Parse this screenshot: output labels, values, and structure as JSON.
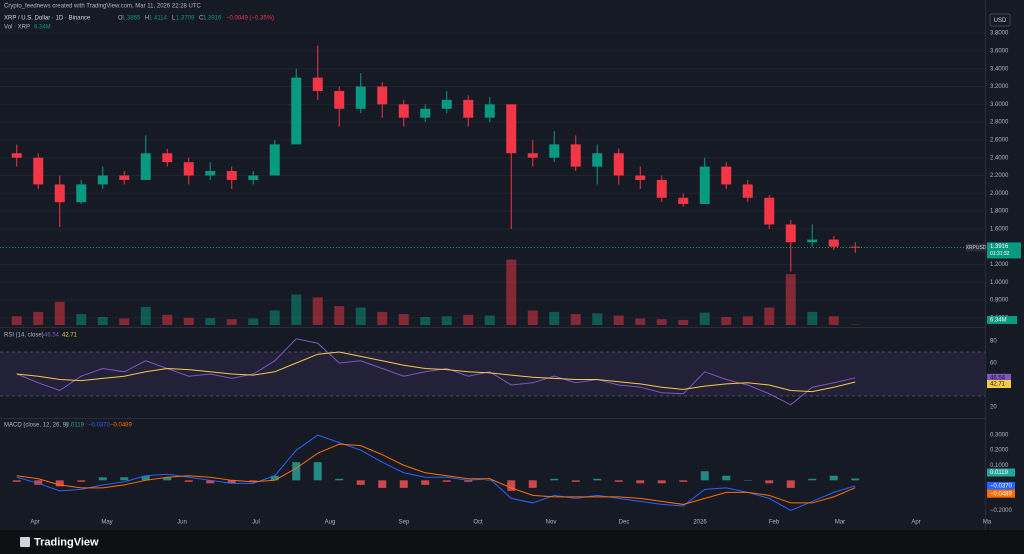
{
  "header": {
    "credit": "Crypto_feednews created with TradingView.com, Mar 11, 2026 22:28 UTC",
    "symbol": "XRP / U.S. Dollar · 1D · Binance",
    "ohlc": [
      {
        "key": "O",
        "value": 1.3865
      },
      {
        "key": "H",
        "value": 1.4114
      },
      {
        "key": "L",
        "value": 1.3709
      },
      {
        "key": "C",
        "value": 1.3916
      }
    ],
    "change": {
      "value": -0.0049,
      "label": "−0.0049 (−0.35%)"
    },
    "volume_title": "Vol · XRP",
    "currency": "USD",
    "ticker": "XRPUSD",
    "countdown": "01:31:32",
    "x_axis_labels": [
      "Apr",
      "May",
      "Jun",
      "Jul",
      "Aug",
      "Sep",
      "Oct",
      "Nov",
      "Dec",
      "2026",
      "Feb",
      "Mar",
      "Apr",
      "Ma"
    ],
    "brand": "TradingView"
  },
  "chart_data": [
    {
      "type": "candlestick",
      "up_color": "#089981",
      "down_color": "#f23645",
      "ylim": [
        0.52,
        4.06
      ],
      "yticks": [
        {
          "value": 0.6,
          "label": "0.6000"
        },
        {
          "value": 0.8,
          "label": "0.8000"
        },
        {
          "value": 1.0,
          "label": "1.0000"
        },
        {
          "value": 1.2,
          "label": "1.2000"
        },
        {
          "value": 1.6,
          "label": "1.6000"
        },
        {
          "value": 1.8,
          "label": "1.8000"
        },
        {
          "value": 2.0,
          "label": "2.0000"
        },
        {
          "value": 2.2,
          "label": "2.2000"
        },
        {
          "value": 2.4,
          "label": "2.4000"
        },
        {
          "value": 2.6,
          "label": "2.6000"
        },
        {
          "value": 2.8,
          "label": "2.8000"
        },
        {
          "value": 3.0,
          "label": "3.0000"
        },
        {
          "value": 3.2,
          "label": "3.2000"
        },
        {
          "value": 3.4,
          "label": "3.4000"
        },
        {
          "value": 3.6,
          "label": "3.6000"
        },
        {
          "value": 3.8,
          "label": "3.8000"
        }
      ],
      "grid": true,
      "open": [
        2.45,
        2.4,
        2.1,
        1.9,
        2.1,
        2.2,
        2.15,
        2.45,
        2.35,
        2.2,
        2.25,
        2.15,
        2.2,
        2.55,
        3.3,
        3.15,
        2.95,
        3.2,
        3.0,
        2.85,
        2.95,
        3.05,
        2.85,
        3.0,
        2.45,
        2.4,
        2.55,
        2.3,
        2.45,
        2.2,
        2.15,
        1.95,
        1.88,
        2.3,
        2.1,
        1.95,
        1.65,
        1.45,
        1.48,
        1.4
      ],
      "high": [
        2.55,
        2.45,
        2.2,
        2.15,
        2.3,
        2.25,
        2.65,
        2.5,
        2.4,
        2.35,
        2.3,
        2.25,
        2.6,
        3.4,
        3.66,
        3.2,
        3.35,
        3.25,
        3.05,
        3.0,
        3.15,
        3.1,
        3.08,
        3.0,
        2.6,
        2.7,
        2.65,
        2.55,
        2.5,
        2.3,
        2.2,
        2.0,
        2.4,
        2.35,
        2.15,
        1.98,
        1.7,
        1.65,
        1.52,
        1.45
      ],
      "low": [
        2.3,
        2.05,
        1.62,
        1.88,
        2.05,
        2.1,
        2.15,
        2.3,
        2.1,
        2.15,
        2.05,
        2.1,
        2.2,
        2.55,
        3.05,
        2.75,
        2.9,
        2.85,
        2.75,
        2.8,
        2.9,
        2.75,
        2.8,
        1.6,
        2.3,
        2.35,
        2.25,
        2.1,
        2.1,
        2.05,
        1.9,
        1.85,
        1.88,
        2.05,
        1.9,
        1.6,
        1.12,
        1.4,
        1.36,
        1.33
      ],
      "close": [
        2.4,
        2.1,
        1.9,
        2.1,
        2.2,
        2.15,
        2.45,
        2.35,
        2.2,
        2.25,
        2.15,
        2.2,
        2.55,
        3.3,
        3.15,
        2.95,
        3.2,
        3.0,
        2.85,
        2.95,
        3.05,
        2.85,
        3.0,
        2.45,
        2.4,
        2.55,
        2.3,
        2.45,
        2.2,
        2.15,
        1.95,
        1.88,
        2.3,
        2.1,
        1.95,
        1.65,
        1.45,
        1.48,
        1.4,
        1.3916
      ],
      "volume": {
        "ylim": [
          0,
          1100000000
        ],
        "values": [
          120000000,
          180000000,
          320000000,
          150000000,
          110000000,
          90000000,
          250000000,
          140000000,
          100000000,
          95000000,
          80000000,
          90000000,
          200000000,
          420000000,
          380000000,
          260000000,
          240000000,
          180000000,
          150000000,
          110000000,
          120000000,
          140000000,
          130000000,
          900000000,
          200000000,
          180000000,
          150000000,
          160000000,
          130000000,
          90000000,
          80000000,
          70000000,
          170000000,
          110000000,
          120000000,
          240000000,
          700000000,
          180000000,
          120000000,
          6340000
        ],
        "value_labels": [
          null,
          null,
          null,
          null,
          null,
          null,
          null,
          null,
          null,
          null,
          null,
          null,
          null,
          null,
          null,
          null,
          null,
          null,
          null,
          null,
          null,
          null,
          null,
          null,
          null,
          null,
          null,
          null,
          null,
          null,
          null,
          null,
          null,
          null,
          null,
          null,
          null,
          null,
          null,
          "6.34M"
        ]
      }
    },
    {
      "type": "line",
      "title": "RSI (14, close)",
      "ylim": [
        10,
        90
      ],
      "yticks": [
        20,
        60,
        80
      ],
      "band": [
        30,
        70
      ],
      "series": [
        {
          "name": "RSI",
          "color": "#7e57c2",
          "values": [
            50,
            42,
            35,
            48,
            55,
            52,
            62,
            55,
            48,
            50,
            46,
            50,
            62,
            82,
            78,
            60,
            62,
            55,
            48,
            52,
            55,
            48,
            52,
            40,
            42,
            48,
            42,
            45,
            40,
            38,
            33,
            32,
            52,
            45,
            40,
            32,
            22,
            38,
            42,
            46.54
          ]
        },
        {
          "name": "RSI MA",
          "color": "#f7c948",
          "values": [
            50,
            48,
            45,
            44,
            46,
            48,
            52,
            55,
            54,
            52,
            50,
            49,
            52,
            60,
            68,
            70,
            66,
            62,
            58,
            55,
            54,
            52,
            51,
            49,
            47,
            46,
            45,
            45,
            43,
            41,
            38,
            36,
            39,
            41,
            42,
            40,
            35,
            34,
            38,
            42.71
          ]
        }
      ]
    },
    {
      "type": "macd",
      "title": "MACD (close, 12, 26, 9)",
      "ylim": [
        -0.25,
        0.4
      ],
      "yticks": [
        {
          "value": -0.2,
          "label": "−0.2000"
        },
        {
          "value": 0.1,
          "label": "0.1000"
        },
        {
          "value": 0.2,
          "label": "0.2000"
        },
        {
          "value": 0.3,
          "label": "0.3000"
        }
      ],
      "series": [
        {
          "name": "Histogram",
          "color": "#26a69a",
          "down_color": "#ff5252",
          "values": [
            -0.01,
            -0.03,
            -0.04,
            -0.01,
            0.02,
            0.02,
            0.03,
            0.02,
            -0.01,
            -0.02,
            -0.02,
            -0.01,
            0.03,
            0.12,
            0.12,
            0.01,
            -0.03,
            -0.05,
            -0.05,
            -0.03,
            -0.01,
            -0.01,
            0.0,
            -0.07,
            -0.05,
            0.01,
            -0.01,
            0.01,
            -0.01,
            -0.02,
            -0.02,
            -0.01,
            0.06,
            0.03,
            0.0,
            -0.02,
            -0.05,
            0.01,
            0.03,
            0.0119
          ]
        },
        {
          "name": "MACD",
          "color": "#2962ff",
          "values": [
            0.02,
            -0.02,
            -0.07,
            -0.06,
            -0.03,
            -0.01,
            0.03,
            0.04,
            0.02,
            0.0,
            -0.02,
            -0.02,
            0.03,
            0.2,
            0.3,
            0.25,
            0.2,
            0.12,
            0.05,
            0.02,
            0.02,
            0.0,
            0.01,
            -0.12,
            -0.15,
            -0.1,
            -0.12,
            -0.1,
            -0.12,
            -0.14,
            -0.16,
            -0.17,
            -0.06,
            -0.05,
            -0.08,
            -0.12,
            -0.2,
            -0.14,
            -0.08,
            -0.037
          ],
          "value_labels": [
            null,
            null,
            null,
            null,
            null,
            null,
            null,
            null,
            null,
            null,
            null,
            null,
            null,
            null,
            null,
            null,
            null,
            null,
            null,
            null,
            null,
            null,
            null,
            null,
            null,
            null,
            null,
            null,
            null,
            null,
            null,
            null,
            null,
            null,
            null,
            null,
            null,
            null,
            null,
            "−0.0370"
          ]
        },
        {
          "name": "Signal",
          "color": "#ff6d00",
          "values": [
            0.03,
            0.01,
            -0.03,
            -0.05,
            -0.05,
            -0.03,
            0.0,
            0.02,
            0.03,
            0.02,
            0.0,
            -0.01,
            0.0,
            0.08,
            0.18,
            0.24,
            0.23,
            0.17,
            0.1,
            0.05,
            0.03,
            0.01,
            0.01,
            -0.05,
            -0.1,
            -0.11,
            -0.11,
            -0.11,
            -0.11,
            -0.12,
            -0.14,
            -0.16,
            -0.12,
            -0.08,
            -0.08,
            -0.1,
            -0.15,
            -0.15,
            -0.11,
            -0.0489
          ],
          "value_labels": [
            null,
            null,
            null,
            null,
            null,
            null,
            null,
            null,
            null,
            null,
            null,
            null,
            null,
            null,
            null,
            null,
            null,
            null,
            null,
            null,
            null,
            null,
            null,
            null,
            null,
            null,
            null,
            null,
            null,
            null,
            null,
            null,
            null,
            null,
            null,
            null,
            null,
            null,
            null,
            "−0.0489"
          ]
        }
      ]
    }
  ]
}
